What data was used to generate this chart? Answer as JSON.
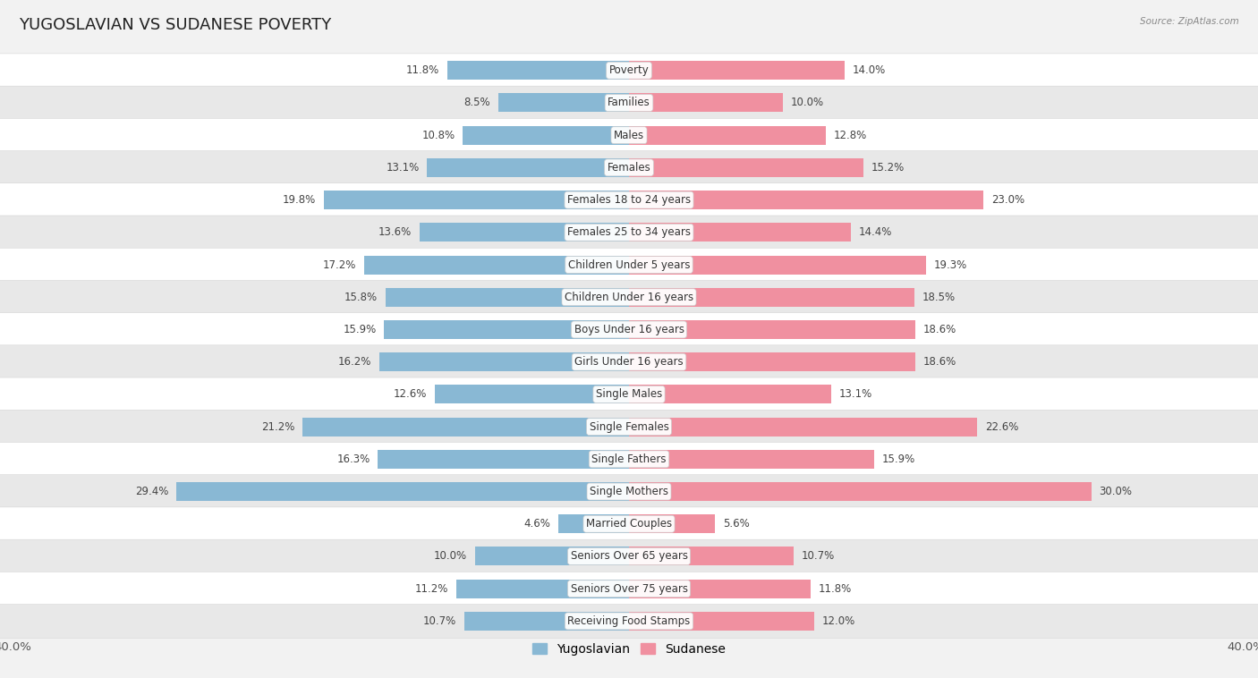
{
  "title": "YUGOSLAVIAN VS SUDANESE POVERTY",
  "source": "Source: ZipAtlas.com",
  "categories": [
    "Poverty",
    "Families",
    "Males",
    "Females",
    "Females 18 to 24 years",
    "Females 25 to 34 years",
    "Children Under 5 years",
    "Children Under 16 years",
    "Boys Under 16 years",
    "Girls Under 16 years",
    "Single Males",
    "Single Females",
    "Single Fathers",
    "Single Mothers",
    "Married Couples",
    "Seniors Over 65 years",
    "Seniors Over 75 years",
    "Receiving Food Stamps"
  ],
  "yugoslavian": [
    11.8,
    8.5,
    10.8,
    13.1,
    19.8,
    13.6,
    17.2,
    15.8,
    15.9,
    16.2,
    12.6,
    21.2,
    16.3,
    29.4,
    4.6,
    10.0,
    11.2,
    10.7
  ],
  "sudanese": [
    14.0,
    10.0,
    12.8,
    15.2,
    23.0,
    14.4,
    19.3,
    18.5,
    18.6,
    18.6,
    13.1,
    22.6,
    15.9,
    30.0,
    5.6,
    10.7,
    11.8,
    12.0
  ],
  "yugo_color": "#89b8d4",
  "sudan_color": "#f090a0",
  "bg_color": "#f2f2f2",
  "row_bg_odd": "#ffffff",
  "row_bg_even": "#e8e8e8",
  "axis_limit": 40.0,
  "bar_height": 0.58,
  "legend_yugo": "Yugoslavian",
  "legend_sudan": "Sudanese",
  "title_fontsize": 13,
  "label_fontsize": 8.5,
  "value_fontsize": 8.5
}
